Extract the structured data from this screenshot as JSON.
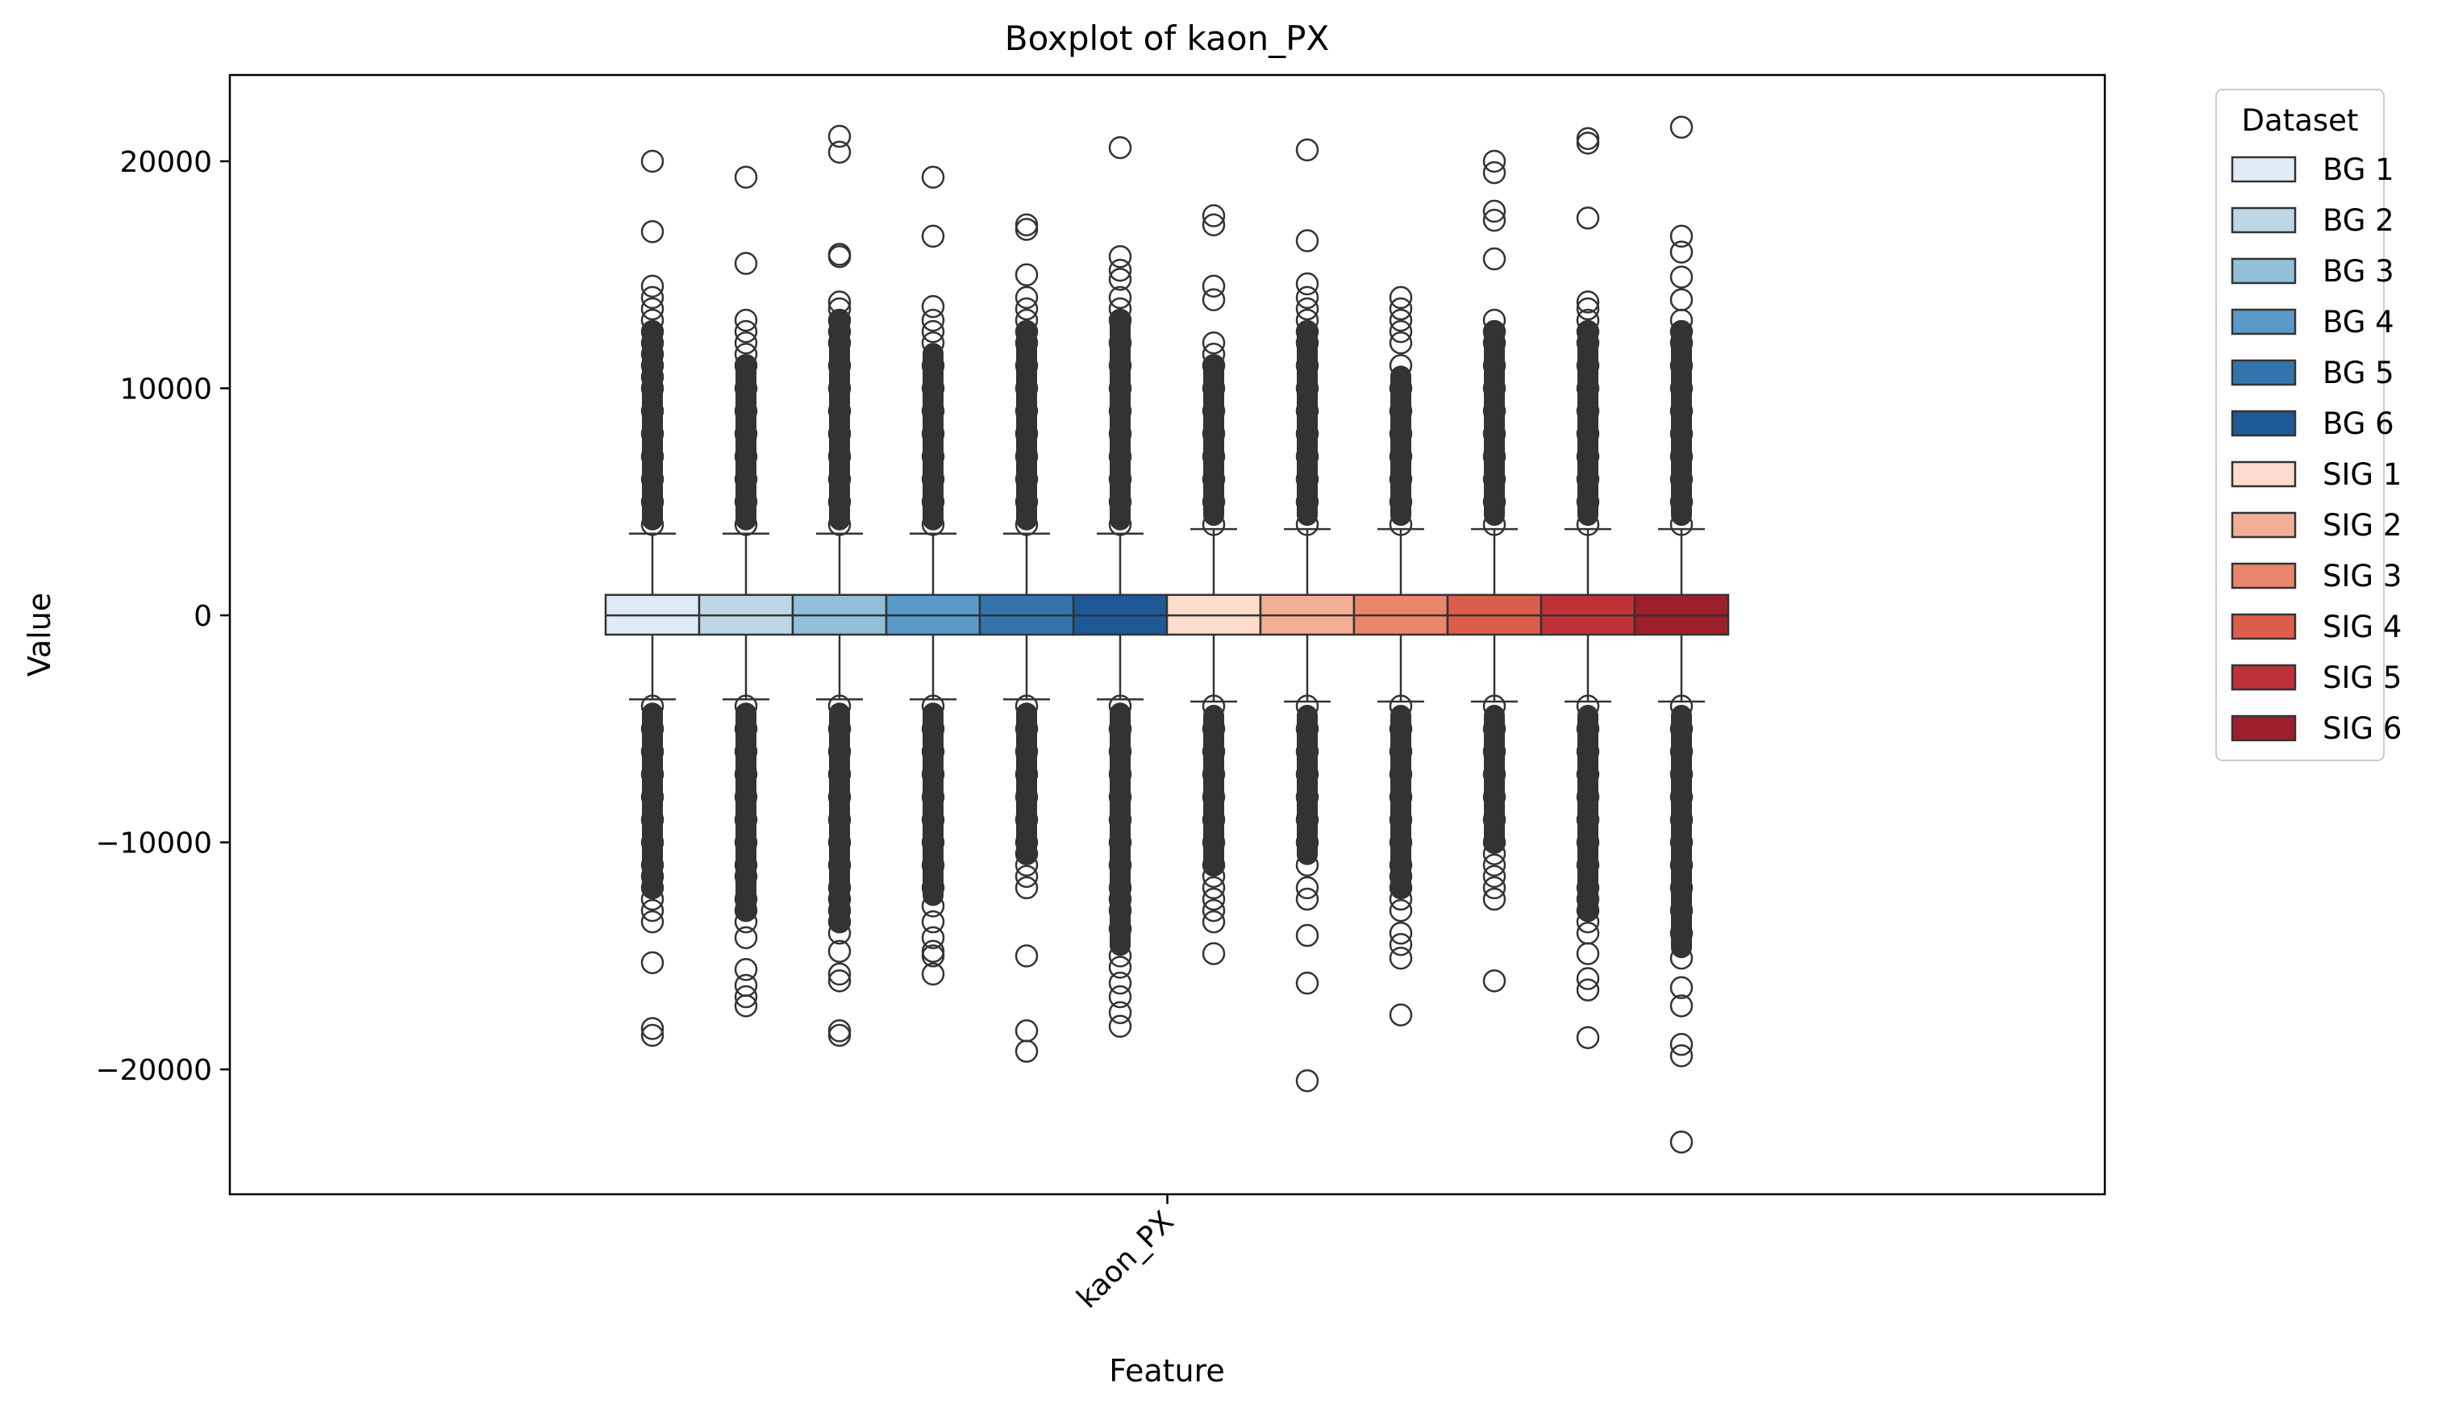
{
  "chart_data": {
    "type": "boxplot",
    "title": "Boxplot of kaon_PX",
    "xlabel": "Feature",
    "ylabel": "Value",
    "categories": [
      "kaon_PX"
    ],
    "ylim": [
      -25500,
      23800
    ],
    "yticks": [
      20000,
      10000,
      0,
      -10000,
      -20000
    ],
    "ytick_labels": [
      "20000",
      "10000",
      "0",
      "−10000",
      "−20000"
    ],
    "legend": {
      "title": "Dataset",
      "placement": "outside-right"
    },
    "series": [
      {
        "name": "BG 1",
        "color": "#deebf7",
        "q1": -850,
        "median": 0,
        "q3": 900,
        "whisker_low": -3700,
        "whisker_high": 3600,
        "outliers_high": [
          20000,
          16900,
          14500,
          14000,
          13500,
          13000,
          12500,
          12000,
          11500,
          11000,
          10500,
          10000,
          9000,
          8000,
          7000,
          6000,
          5000,
          4000
        ],
        "outliers_low": [
          -4000,
          -5000,
          -6000,
          -7000,
          -8000,
          -9000,
          -10000,
          -11000,
          -11500,
          -12000,
          -12500,
          -13000,
          -13500,
          -15300,
          -18200,
          -18500
        ]
      },
      {
        "name": "BG 2",
        "color": "#bdd7e7",
        "q1": -850,
        "median": 0,
        "q3": 900,
        "whisker_low": -3700,
        "whisker_high": 3600,
        "outliers_high": [
          19300,
          15500,
          13000,
          12500,
          12000,
          11500,
          11000,
          10000,
          9000,
          8000,
          7000,
          6000,
          5000,
          4000
        ],
        "outliers_low": [
          -4000,
          -5000,
          -6000,
          -7000,
          -8000,
          -9000,
          -10000,
          -11000,
          -11500,
          -12500,
          -13000,
          -13500,
          -14200,
          -15600,
          -16300,
          -16800,
          -17200
        ]
      },
      {
        "name": "BG 3",
        "color": "#92bfda",
        "q1": -850,
        "median": 0,
        "q3": 900,
        "whisker_low": -3700,
        "whisker_high": 3600,
        "outliers_high": [
          21100,
          20400,
          15900,
          15800,
          13800,
          13500,
          13000,
          12500,
          12000,
          11000,
          10000,
          9000,
          8000,
          7000,
          6000,
          5000,
          4000
        ],
        "outliers_low": [
          -4000,
          -5000,
          -6000,
          -7000,
          -8000,
          -9000,
          -10000,
          -11000,
          -12000,
          -12500,
          -13000,
          -13500,
          -14000,
          -14800,
          -15800,
          -16100,
          -18300,
          -18500
        ]
      },
      {
        "name": "BG 4",
        "color": "#5a9ac9",
        "q1": -850,
        "median": 0,
        "q3": 900,
        "whisker_low": -3700,
        "whisker_high": 3600,
        "outliers_high": [
          19300,
          16700,
          13600,
          13000,
          12500,
          12000,
          11000,
          10000,
          9000,
          8000,
          7000,
          6000,
          5000,
          4000
        ],
        "outliers_low": [
          -4000,
          -5000,
          -6000,
          -7000,
          -8000,
          -9000,
          -10000,
          -11000,
          -12000,
          -12800,
          -13500,
          -14200,
          -14800,
          -15000,
          -15800
        ]
      },
      {
        "name": "BG 5",
        "color": "#3474ad",
        "q1": -850,
        "median": 0,
        "q3": 900,
        "whisker_low": -3700,
        "whisker_high": 3600,
        "outliers_high": [
          17200,
          17000,
          15000,
          14000,
          13500,
          13000,
          12500,
          12000,
          11000,
          10000,
          9000,
          8000,
          7000,
          6000,
          5000,
          4000
        ],
        "outliers_low": [
          -4000,
          -5000,
          -6000,
          -7000,
          -8000,
          -9000,
          -10000,
          -10500,
          -11000,
          -11500,
          -12000,
          -15000,
          -18300,
          -19200
        ]
      },
      {
        "name": "BG 6",
        "color": "#1e5897",
        "q1": -850,
        "median": 0,
        "q3": 900,
        "whisker_low": -3700,
        "whisker_high": 3600,
        "outliers_high": [
          20600,
          15800,
          15200,
          14800,
          14000,
          13500,
          13000,
          12000,
          11000,
          10000,
          9000,
          8000,
          7000,
          6000,
          5000,
          4000
        ],
        "outliers_low": [
          -4000,
          -5000,
          -6000,
          -7000,
          -8000,
          -9000,
          -10000,
          -11000,
          -12000,
          -12500,
          -13000,
          -13800,
          -15000,
          -15500,
          -16200,
          -16800,
          -17500,
          -18100
        ]
      },
      {
        "name": "SIG 1",
        "color": "#fcdccc",
        "q1": -850,
        "median": 0,
        "q3": 900,
        "whisker_low": -3800,
        "whisker_high": 3800,
        "outliers_high": [
          17600,
          17200,
          14500,
          13900,
          12000,
          11500,
          11000,
          10000,
          9000,
          8000,
          7000,
          6000,
          5000,
          4000
        ],
        "outliers_low": [
          -4000,
          -5000,
          -6000,
          -7000,
          -8000,
          -9000,
          -10000,
          -11000,
          -11500,
          -12000,
          -12500,
          -13000,
          -13500,
          -14900
        ]
      },
      {
        "name": "SIG 2",
        "color": "#f3ae95",
        "q1": -850,
        "median": 0,
        "q3": 900,
        "whisker_low": -3800,
        "whisker_high": 3800,
        "outliers_high": [
          20500,
          16500,
          14600,
          14000,
          13500,
          13000,
          12500,
          12000,
          11000,
          10000,
          9000,
          8000,
          7000,
          6000,
          5000,
          4000
        ],
        "outliers_low": [
          -4000,
          -5000,
          -6000,
          -7000,
          -8000,
          -9000,
          -10000,
          -11000,
          -12000,
          -12500,
          -14100,
          -16200,
          -20500
        ]
      },
      {
        "name": "SIG 3",
        "color": "#e9866b",
        "q1": -850,
        "median": 0,
        "q3": 900,
        "whisker_low": -3800,
        "whisker_high": 3800,
        "outliers_high": [
          14000,
          13500,
          13000,
          12500,
          12000,
          11000,
          10000,
          9000,
          8000,
          7000,
          6000,
          5000,
          4000
        ],
        "outliers_low": [
          -4000,
          -5000,
          -6000,
          -7000,
          -8000,
          -9000,
          -10000,
          -11000,
          -11500,
          -12000,
          -12500,
          -13000,
          -14000,
          -14500,
          -15100,
          -17600
        ]
      },
      {
        "name": "SIG 4",
        "color": "#dc5d4b",
        "q1": -850,
        "median": 0,
        "q3": 900,
        "whisker_low": -3800,
        "whisker_high": 3800,
        "outliers_high": [
          20000,
          19500,
          17800,
          17400,
          15700,
          13000,
          12500,
          12000,
          11000,
          10000,
          9000,
          8000,
          7000,
          6000,
          5000,
          4000
        ],
        "outliers_low": [
          -4000,
          -5000,
          -6000,
          -7000,
          -8000,
          -9000,
          -10000,
          -10500,
          -11000,
          -11500,
          -12000,
          -12500,
          -16100
        ]
      },
      {
        "name": "SIG 5",
        "color": "#c13238",
        "q1": -850,
        "median": 0,
        "q3": 900,
        "whisker_low": -3800,
        "whisker_high": 3800,
        "outliers_high": [
          21000,
          20800,
          17500,
          13800,
          13500,
          13000,
          12500,
          12000,
          11000,
          10000,
          9000,
          8000,
          7000,
          6000,
          5000,
          4000
        ],
        "outliers_low": [
          -4000,
          -5000,
          -6000,
          -7000,
          -8000,
          -9000,
          -10000,
          -11000,
          -12000,
          -12500,
          -13000,
          -13500,
          -14000,
          -14900,
          -16000,
          -16500,
          -18600
        ]
      },
      {
        "name": "SIG 6",
        "color": "#9e1f2c",
        "q1": -850,
        "median": 0,
        "q3": 900,
        "whisker_low": -3800,
        "whisker_high": 3800,
        "outliers_high": [
          21500,
          16700,
          16000,
          14900,
          13900,
          13000,
          12500,
          12000,
          11000,
          10000,
          9000,
          8000,
          7000,
          6000,
          5000,
          4000
        ],
        "outliers_low": [
          -4000,
          -5000,
          -6000,
          -7000,
          -8000,
          -9000,
          -10000,
          -11000,
          -12000,
          -13000,
          -14000,
          -15100,
          -16400,
          -17200,
          -18900,
          -19400,
          -23200
        ]
      }
    ]
  }
}
